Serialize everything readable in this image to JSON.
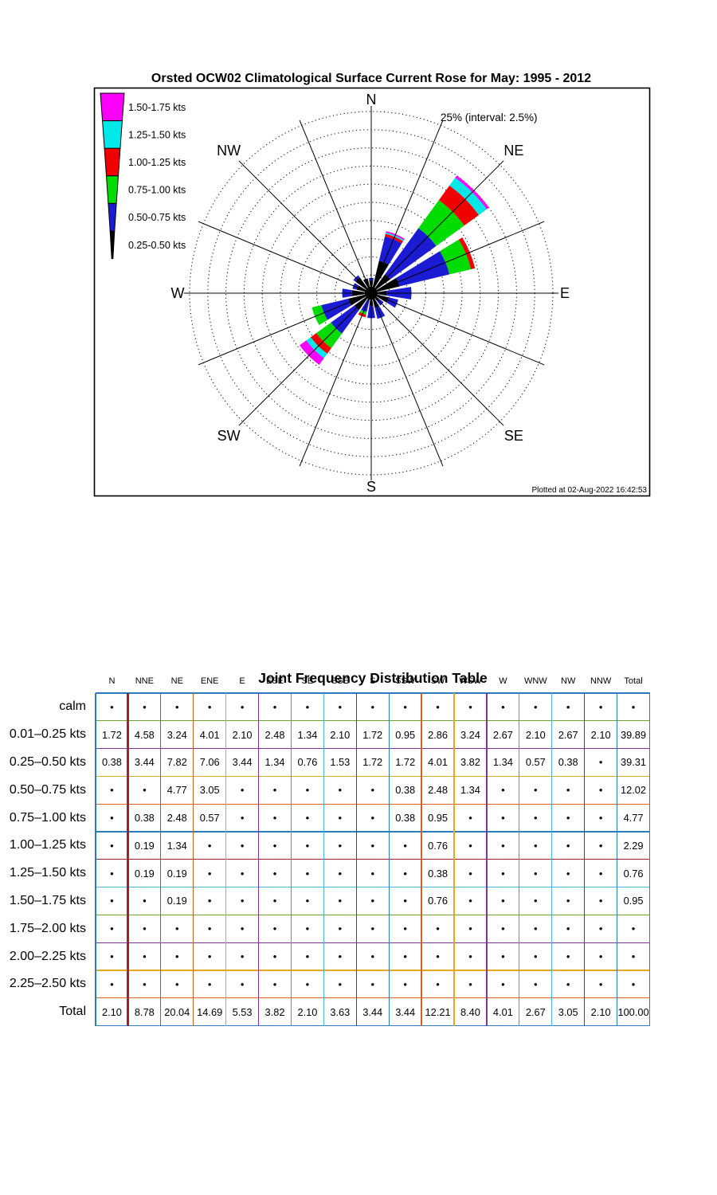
{
  "chart": {
    "title": "Orsted OCW02 Climatological Surface Current Rose for May: 1995 - 2012",
    "annotation": "25% (interval: 2.5%)",
    "plotted_at": "Plotted at 02-Aug-2022 16:42:53",
    "compass_labels": [
      "N",
      "NE",
      "E",
      "SE",
      "S",
      "SW",
      "W",
      "NW"
    ],
    "legend": [
      {
        "label": "1.50-1.75 kts",
        "color": "#fa00fa"
      },
      {
        "label": "1.25-1.50 kts",
        "color": "#00e8e8"
      },
      {
        "label": "1.00-1.25 kts",
        "color": "#f00000"
      },
      {
        "label": "0.75-1.00 kts",
        "color": "#00dc00"
      },
      {
        "label": "0.50-0.75 kts",
        "color": "#1b1bd4"
      },
      {
        "label": "0.25-0.50 kts",
        "color": "#000000"
      }
    ]
  },
  "chart_data": {
    "type": "rose",
    "title": "Orsted OCW02 Climatological Surface Current Rose for May: 1995 - 2012",
    "units": "percent frequency",
    "ring_interval_pct": 2.5,
    "ring_max_pct": 25,
    "rings": 10,
    "petal_bin_colors": [
      "#000000",
      "#1b1bd4",
      "#00dc00",
      "#f00000",
      "#00e8e8",
      "#fa00fa",
      "#fa00fa"
    ],
    "speed_bins_kts": [
      "0.01-0.25",
      "0.25-0.50",
      "0.50-0.75",
      "0.75-1.00",
      "1.00-1.25",
      "1.25-1.50",
      "1.50-1.75"
    ],
    "directions": [
      "N",
      "NNE",
      "NE",
      "ENE",
      "E",
      "ESE",
      "SE",
      "SSE",
      "S",
      "SSW",
      "SW",
      "WSW",
      "W",
      "WNW",
      "NW",
      "NNW"
    ],
    "series": [
      {
        "name": "N",
        "values": [
          1.72,
          0.38,
          0,
          0,
          0,
          0,
          0
        ]
      },
      {
        "name": "NNE",
        "values": [
          4.58,
          3.44,
          0,
          0.38,
          0.19,
          0.19,
          0
        ]
      },
      {
        "name": "NE",
        "values": [
          3.24,
          7.82,
          4.77,
          2.48,
          1.34,
          0.19,
          0.19
        ]
      },
      {
        "name": "ENE",
        "values": [
          4.01,
          7.06,
          3.05,
          0.57,
          0,
          0,
          0
        ]
      },
      {
        "name": "E",
        "values": [
          2.1,
          3.44,
          0,
          0,
          0,
          0,
          0
        ]
      },
      {
        "name": "ESE",
        "values": [
          2.48,
          1.34,
          0,
          0,
          0,
          0,
          0
        ]
      },
      {
        "name": "SE",
        "values": [
          1.34,
          0.76,
          0,
          0,
          0,
          0,
          0
        ]
      },
      {
        "name": "SSE",
        "values": [
          2.1,
          1.53,
          0,
          0,
          0,
          0,
          0
        ]
      },
      {
        "name": "S",
        "values": [
          1.72,
          1.72,
          0,
          0,
          0,
          0,
          0
        ]
      },
      {
        "name": "SSW",
        "values": [
          0.95,
          1.72,
          0.38,
          0.38,
          0,
          0,
          0
        ]
      },
      {
        "name": "SW",
        "values": [
          2.86,
          4.01,
          2.48,
          0.95,
          0.76,
          0.38,
          0.76
        ]
      },
      {
        "name": "WSW",
        "values": [
          3.24,
          3.82,
          1.34,
          0,
          0,
          0,
          0
        ]
      },
      {
        "name": "W",
        "values": [
          2.67,
          1.34,
          0,
          0,
          0,
          0,
          0
        ]
      },
      {
        "name": "WNW",
        "values": [
          2.1,
          0.57,
          0,
          0,
          0,
          0,
          0
        ]
      },
      {
        "name": "NW",
        "values": [
          2.67,
          0.38,
          0,
          0,
          0,
          0,
          0
        ]
      },
      {
        "name": "NNW",
        "values": [
          2.1,
          0,
          0,
          0,
          0,
          0,
          0
        ]
      }
    ],
    "direction_totals": [
      2.1,
      8.78,
      20.04,
      14.69,
      5.53,
      3.82,
      2.1,
      3.63,
      3.44,
      3.44,
      12.21,
      8.4,
      4.01,
      2.67,
      3.05,
      2.1
    ]
  },
  "table": {
    "title": "Joint Frequency Distribution Table",
    "columns": [
      "N",
      "NNE",
      "NE",
      "ENE",
      "E",
      "ESE",
      "SE",
      "SSE",
      "S",
      "SSW",
      "SW",
      "WSW",
      "W",
      "WNW",
      "NW",
      "NNW",
      "Total"
    ],
    "rows": [
      {
        "label": "calm",
        "values": [
          "•",
          "•",
          "•",
          "•",
          "•",
          "•",
          "•",
          "•",
          "•",
          "•",
          "•",
          "•",
          "•",
          "•",
          "•",
          "•",
          "•"
        ]
      },
      {
        "label": "0.01–0.25 kts",
        "values": [
          "1.72",
          "4.58",
          "3.24",
          "4.01",
          "2.10",
          "2.48",
          "1.34",
          "2.10",
          "1.72",
          "0.95",
          "2.86",
          "3.24",
          "2.67",
          "2.10",
          "2.67",
          "2.10",
          "39.89"
        ]
      },
      {
        "label": "0.25–0.50 kts",
        "values": [
          "0.38",
          "3.44",
          "7.82",
          "7.06",
          "3.44",
          "1.34",
          "0.76",
          "1.53",
          "1.72",
          "1.72",
          "4.01",
          "3.82",
          "1.34",
          "0.57",
          "0.38",
          "•",
          "39.31"
        ]
      },
      {
        "label": "0.50–0.75 kts",
        "values": [
          "•",
          "•",
          "4.77",
          "3.05",
          "•",
          "•",
          "•",
          "•",
          "•",
          "0.38",
          "2.48",
          "1.34",
          "•",
          "•",
          "•",
          "•",
          "12.02"
        ]
      },
      {
        "label": "0.75–1.00 kts",
        "values": [
          "•",
          "0.38",
          "2.48",
          "0.57",
          "•",
          "•",
          "•",
          "•",
          "•",
          "0.38",
          "0.95",
          "•",
          "•",
          "•",
          "•",
          "•",
          "4.77"
        ]
      },
      {
        "label": "1.00–1.25 kts",
        "values": [
          "•",
          "0.19",
          "1.34",
          "•",
          "•",
          "•",
          "•",
          "•",
          "•",
          "•",
          "0.76",
          "•",
          "•",
          "•",
          "•",
          "•",
          "2.29"
        ]
      },
      {
        "label": "1.25–1.50 kts",
        "values": [
          "•",
          "0.19",
          "0.19",
          "•",
          "•",
          "•",
          "•",
          "•",
          "•",
          "•",
          "0.38",
          "•",
          "•",
          "•",
          "•",
          "•",
          "0.76"
        ]
      },
      {
        "label": "1.50–1.75 kts",
        "values": [
          "•",
          "•",
          "0.19",
          "•",
          "•",
          "•",
          "•",
          "•",
          "•",
          "•",
          "0.76",
          "•",
          "•",
          "•",
          "•",
          "•",
          "0.95"
        ]
      },
      {
        "label": "1.75–2.00 kts",
        "values": [
          "•",
          "•",
          "•",
          "•",
          "•",
          "•",
          "•",
          "•",
          "•",
          "•",
          "•",
          "•",
          "•",
          "•",
          "•",
          "•",
          "•"
        ]
      },
      {
        "label": "2.00–2.25 kts",
        "values": [
          "•",
          "•",
          "•",
          "•",
          "•",
          "•",
          "•",
          "•",
          "•",
          "•",
          "•",
          "•",
          "•",
          "•",
          "•",
          "•",
          "•"
        ]
      },
      {
        "label": "2.25–2.50 kts",
        "values": [
          "•",
          "•",
          "•",
          "•",
          "•",
          "•",
          "•",
          "•",
          "•",
          "•",
          "•",
          "•",
          "•",
          "•",
          "•",
          "•",
          "•"
        ]
      },
      {
        "label": "Total",
        "values": [
          "2.10",
          "8.78",
          "20.04",
          "14.69",
          "5.53",
          "3.82",
          "2.10",
          "3.63",
          "3.44",
          "3.44",
          "12.21",
          "8.40",
          "4.01",
          "2.67",
          "3.05",
          "2.10",
          "100.00"
        ]
      }
    ],
    "grid_v_colors": [
      "#2b7cbf",
      "#a02128",
      "#2b7cbf",
      "#d95f1e",
      "#e5a623",
      "#7d3596",
      "#74a32d",
      "#4ab4e6",
      "#a02128",
      "#2b7cbf",
      "#d95f1e",
      "#e5a623",
      "#7d3596",
      "#74a32d",
      "#4ab4e6",
      "#a02128",
      "#2b7cbf",
      "#2b7cbf"
    ],
    "grid_h_colors": [
      "#2b7cbf",
      "#74a32d",
      "#7d3596",
      "#e5a623",
      "#d95f1e",
      "#2b7cbf",
      "#a02128",
      "#4ab4e6",
      "#74a32d",
      "#7d3596",
      "#e5a623",
      "#d95f1e",
      "#2b7cbf"
    ]
  }
}
